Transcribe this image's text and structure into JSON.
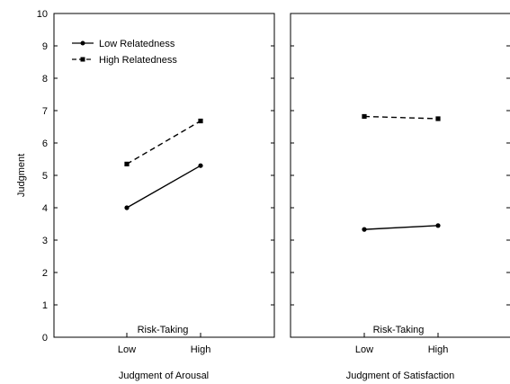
{
  "chart_data": [
    {
      "type": "line",
      "xlabel": "Judgment of Arousal",
      "ylabel": "Judgment",
      "categories": [
        "Low",
        "High"
      ],
      "ylim": [
        0,
        10
      ],
      "yticks": [
        0,
        1,
        2,
        3,
        4,
        5,
        6,
        7,
        8,
        9,
        10
      ],
      "annotation": "Risk-Taking",
      "legend_position": "top-left",
      "series": [
        {
          "name": "Low Relatedness",
          "values": [
            4.0,
            5.3
          ],
          "line_style": "solid",
          "marker": "circle",
          "color": "#000000"
        },
        {
          "name": "High Relatedness",
          "values": [
            5.35,
            6.68
          ],
          "line_style": "dashed",
          "marker": "square",
          "color": "#000000"
        }
      ]
    },
    {
      "type": "line",
      "xlabel": "Judgment of Satisfaction",
      "ylabel": "",
      "categories": [
        "Low",
        "High"
      ],
      "ylim": [
        0,
        10
      ],
      "annotation": "Risk-Taking",
      "series": [
        {
          "name": "Low Relatedness",
          "values": [
            3.33,
            3.45
          ],
          "line_style": "solid",
          "marker": "circle",
          "color": "#000000"
        },
        {
          "name": "High Relatedness",
          "values": [
            6.82,
            6.75
          ],
          "line_style": "dashed",
          "marker": "square",
          "color": "#000000"
        }
      ]
    }
  ]
}
